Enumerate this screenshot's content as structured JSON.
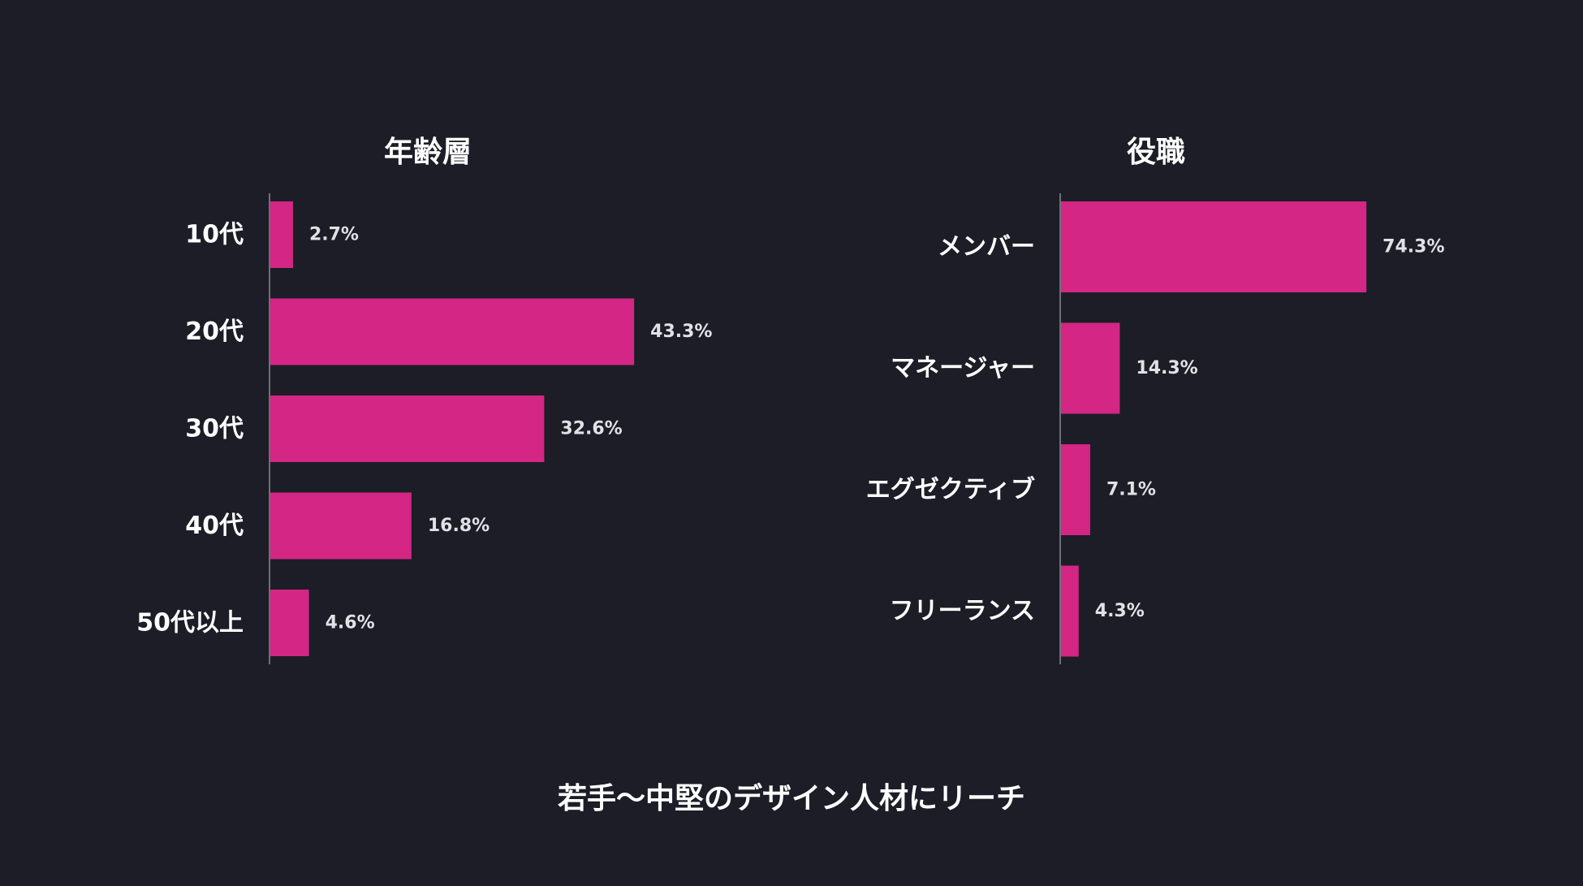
{
  "colors": {
    "background": "#1c1d26",
    "bar": "#d32685",
    "axis": "#8a8b94",
    "text": "#ffffff",
    "value_text": "#e2e2e6"
  },
  "caption": "若手〜中堅のデザイン人材にリーチ",
  "chart_data": [
    {
      "type": "bar",
      "orientation": "horizontal",
      "title": "年齢層",
      "categories": [
        "10代",
        "20代",
        "30代",
        "40代",
        "50代以上"
      ],
      "values": [
        2.7,
        43.3,
        32.6,
        16.8,
        4.6
      ],
      "value_labels": [
        "2.7%",
        "43.3%",
        "32.6%",
        "16.8%",
        "4.6%"
      ],
      "grid": false
    },
    {
      "type": "bar",
      "orientation": "horizontal",
      "title": "役職",
      "categories": [
        "メンバー",
        "マネージャー",
        "エグゼクティブ",
        "フリーランス"
      ],
      "values": [
        74.3,
        14.3,
        7.1,
        4.3
      ],
      "value_labels": [
        "74.3%",
        "14.3%",
        "7.1%",
        "4.3%"
      ],
      "grid": false
    }
  ]
}
